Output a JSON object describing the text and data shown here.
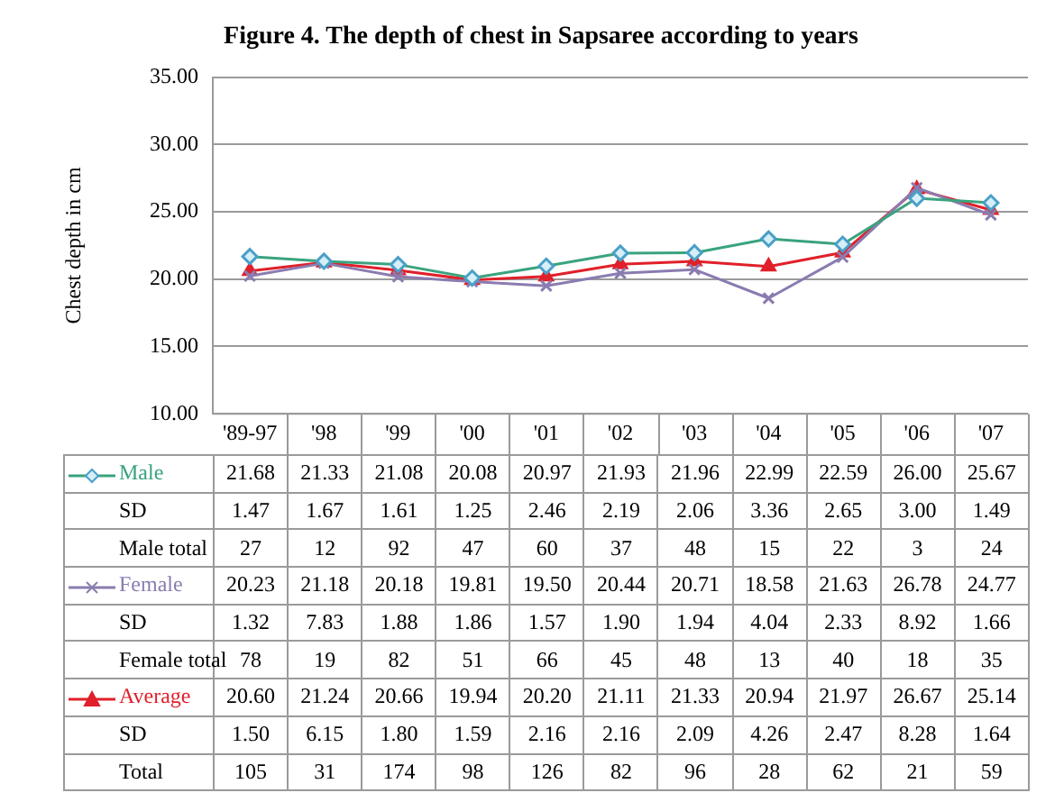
{
  "chart_data": {
    "type": "line",
    "title": "Figure 4. The depth of chest in Sapsaree according to years",
    "ylabel": "Chest depth in cm",
    "categories": [
      "'89-97",
      "'98",
      "'99",
      "'00",
      "'01",
      "'02",
      "'03",
      "'04",
      "'05",
      "'06",
      "'07"
    ],
    "ylim": [
      10,
      35
    ],
    "yticks": [
      {
        "value": 10,
        "label": "10.00"
      },
      {
        "value": 15,
        "label": "15.00"
      },
      {
        "value": 20,
        "label": "20.00"
      },
      {
        "value": 25,
        "label": "25.00"
      },
      {
        "value": 30,
        "label": "30.00"
      },
      {
        "value": 35,
        "label": "35.00"
      }
    ],
    "grid": "y",
    "legend": "bottom left",
    "series": [
      {
        "name": "Male",
        "color": "#3aa37e",
        "marker": "diamond",
        "values": [
          21.68,
          21.33,
          21.08,
          20.08,
          20.97,
          21.93,
          21.96,
          22.99,
          22.59,
          26.0,
          25.67
        ],
        "value_labels": [
          "21.68",
          "21.33",
          "21.08",
          "20.08",
          "20.97",
          "21.93",
          "21.96",
          "22.99",
          "22.59",
          "26.00",
          "25.67"
        ]
      },
      {
        "name": "SD",
        "values": [
          null,
          null,
          null,
          null,
          null,
          null,
          null,
          null,
          null,
          null,
          null
        ],
        "value_labels": [
          "1.47",
          "1.67",
          "1.61",
          "1.25",
          "2.46",
          "2.19",
          "2.06",
          "3.36",
          "2.65",
          "3.00",
          "1.49"
        ]
      },
      {
        "name": "Male total",
        "values": [
          null,
          null,
          null,
          null,
          null,
          null,
          null,
          null,
          null,
          null,
          null
        ],
        "value_labels": [
          "27",
          "12",
          "92",
          "47",
          "60",
          "37",
          "48",
          "15",
          "22",
          "3",
          "24"
        ]
      },
      {
        "name": "Female",
        "color": "#8a7cb0",
        "marker": "cross",
        "values": [
          20.23,
          21.18,
          20.18,
          19.81,
          19.5,
          20.44,
          20.71,
          18.58,
          21.63,
          26.78,
          24.77
        ],
        "value_labels": [
          "20.23",
          "21.18",
          "20.18",
          "19.81",
          "19.50",
          "20.44",
          "20.71",
          "18.58",
          "21.63",
          "26.78",
          "24.77"
        ]
      },
      {
        "name": "SD",
        "values": [
          null,
          null,
          null,
          null,
          null,
          null,
          null,
          null,
          null,
          null,
          null
        ],
        "value_labels": [
          "1.32",
          "7.83",
          "1.88",
          "1.86",
          "1.57",
          "1.90",
          "1.94",
          "4.04",
          "2.33",
          "8.92",
          "1.66"
        ]
      },
      {
        "name": "Female total",
        "values": [
          null,
          null,
          null,
          null,
          null,
          null,
          null,
          null,
          null,
          null,
          null
        ],
        "value_labels": [
          "78",
          "19",
          "82",
          "51",
          "66",
          "45",
          "48",
          "13",
          "40",
          "18",
          "35"
        ]
      },
      {
        "name": "Average",
        "color": "#e0202a",
        "marker": "triangle",
        "values": [
          20.6,
          21.24,
          20.66,
          19.94,
          20.2,
          21.11,
          21.33,
          20.94,
          21.97,
          26.67,
          25.14
        ],
        "value_labels": [
          "20.60",
          "21.24",
          "20.66",
          "19.94",
          "20.20",
          "21.11",
          "21.33",
          "20.94",
          "21.97",
          "26.67",
          "25.14"
        ]
      },
      {
        "name": "SD",
        "values": [
          null,
          null,
          null,
          null,
          null,
          null,
          null,
          null,
          null,
          null,
          null
        ],
        "value_labels": [
          "1.50",
          "6.15",
          "1.80",
          "1.59",
          "2.16",
          "2.16",
          "2.09",
          "4.26",
          "2.47",
          "8.28",
          "1.64"
        ]
      },
      {
        "name": "Total",
        "values": [
          null,
          null,
          null,
          null,
          null,
          null,
          null,
          null,
          null,
          null,
          null
        ],
        "value_labels": [
          "105",
          "31",
          "174",
          "98",
          "126",
          "82",
          "96",
          "28",
          "62",
          "21",
          "59"
        ]
      }
    ]
  }
}
